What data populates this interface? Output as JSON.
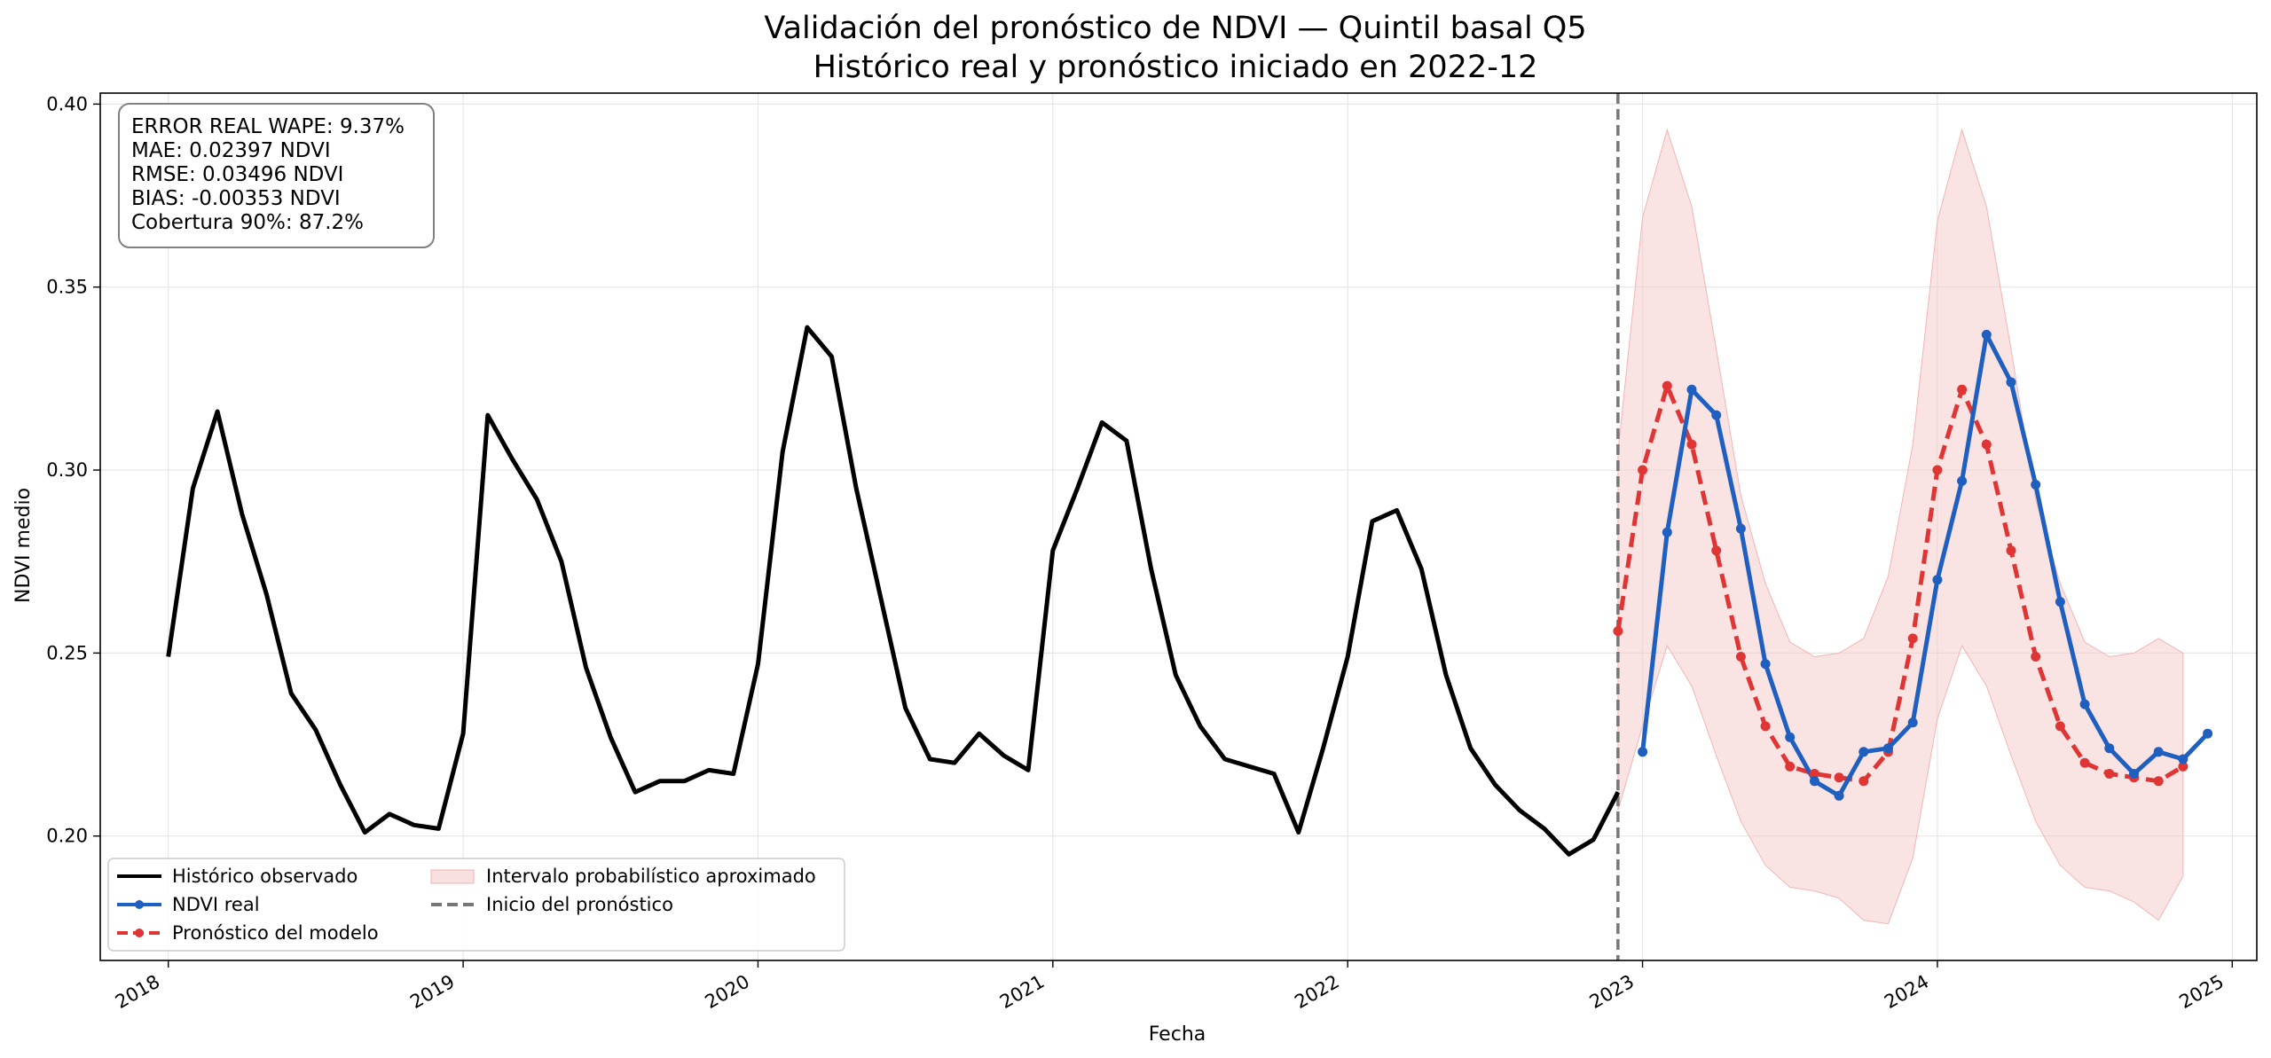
{
  "chart_data": {
    "type": "line",
    "title": "Validación del pronóstico de NDVI — Quintil basal Q5",
    "subtitle": "Histórico real y pronóstico iniciado en 2022-12",
    "xlabel": "Fecha",
    "ylabel": "NDVI medio",
    "xlim": [
      "2017-10-08",
      "2025-02-01"
    ],
    "ylim": [
      0.166,
      0.403
    ],
    "x_ticks": [
      "2018",
      "2019",
      "2020",
      "2021",
      "2022",
      "2023",
      "2024",
      "2025"
    ],
    "y_ticks": [
      "0.20",
      "0.25",
      "0.30",
      "0.35",
      "0.40"
    ],
    "grid": true,
    "legend_position": "lower-left",
    "stats_box_lines": [
      "ERROR REAL WAPE: 9.37%",
      "MAE: 0.02397 NDVI",
      "RMSE: 0.03496 NDVI",
      "BIAS: -0.00353 NDVI",
      "Cobertura 90%: 87.2%"
    ],
    "forecast_start": "2022-12-01",
    "series": [
      {
        "name": "Histórico observado",
        "color": "#000000",
        "style": "solid",
        "x_start": "2018-01",
        "values": [
          0.249,
          0.295,
          0.316,
          0.288,
          0.266,
          0.239,
          0.229,
          0.214,
          0.201,
          0.206,
          0.203,
          0.202,
          0.228,
          0.315,
          0.303,
          0.292,
          0.275,
          0.246,
          0.227,
          0.212,
          0.215,
          0.215,
          0.218,
          0.217,
          0.247,
          0.305,
          0.339,
          0.331,
          0.295,
          0.265,
          0.235,
          0.221,
          0.22,
          0.228,
          0.222,
          0.218,
          0.278,
          0.295,
          0.313,
          0.308,
          0.273,
          0.244,
          0.23,
          0.221,
          0.219,
          0.217,
          0.201,
          0.224,
          0.249,
          0.286,
          0.289,
          0.273,
          0.244,
          0.224,
          0.214,
          0.207,
          0.202,
          0.195,
          0.199,
          0.212
        ]
      },
      {
        "name": "NDVI real",
        "color": "#1f5fbf",
        "style": "solid-markers",
        "x_start": "2023-01",
        "values": [
          0.223,
          0.283,
          0.322,
          0.315,
          0.284,
          0.247,
          0.227,
          0.215,
          0.211,
          0.223,
          0.224,
          0.231,
          0.27,
          0.297,
          0.337,
          0.324,
          0.296,
          0.264,
          0.236,
          0.224,
          0.217,
          0.223,
          0.221,
          0.228
        ]
      },
      {
        "name": "Pronóstico del modelo",
        "color": "#e03535",
        "style": "dashed-markers",
        "x_start": "2022-12",
        "values": [
          0.256,
          0.3,
          0.323,
          0.307,
          0.278,
          0.249,
          0.23,
          0.219,
          0.217,
          0.216,
          0.215,
          0.223,
          0.254,
          0.3,
          0.322,
          0.307,
          0.278,
          0.249,
          0.23,
          0.22,
          0.217,
          0.216,
          0.215,
          0.219
        ]
      },
      {
        "name": "Intervalo probabilístico aproximado",
        "color": "#f4c7c7",
        "style": "band",
        "x_start": "2022-12",
        "lower": [
          0.207,
          0.23,
          0.252,
          0.241,
          0.222,
          0.204,
          0.192,
          0.186,
          0.185,
          0.183,
          0.177,
          0.176,
          0.194,
          0.232,
          0.252,
          0.241,
          0.222,
          0.204,
          0.192,
          0.186,
          0.185,
          0.182,
          0.177,
          0.189
        ],
        "upper": [
          0.305,
          0.369,
          0.393,
          0.372,
          0.333,
          0.293,
          0.269,
          0.253,
          0.249,
          0.25,
          0.254,
          0.271,
          0.307,
          0.368,
          0.393,
          0.372,
          0.333,
          0.292,
          0.269,
          0.253,
          0.249,
          0.25,
          0.254,
          0.25
        ]
      }
    ],
    "legend": {
      "items": [
        {
          "label": "Histórico observado",
          "kind": "line",
          "color": "#000000"
        },
        {
          "label": "NDVI real",
          "kind": "line-marker",
          "color": "#1f5fbf"
        },
        {
          "label": "Pronóstico del modelo",
          "kind": "dashed-marker",
          "color": "#e03535"
        },
        {
          "label": "Intervalo probabilístico aproximado",
          "kind": "band",
          "color": "#f4c7c7"
        },
        {
          "label": "Inicio del pronóstico",
          "kind": "vline",
          "color": "#777777"
        }
      ]
    }
  }
}
